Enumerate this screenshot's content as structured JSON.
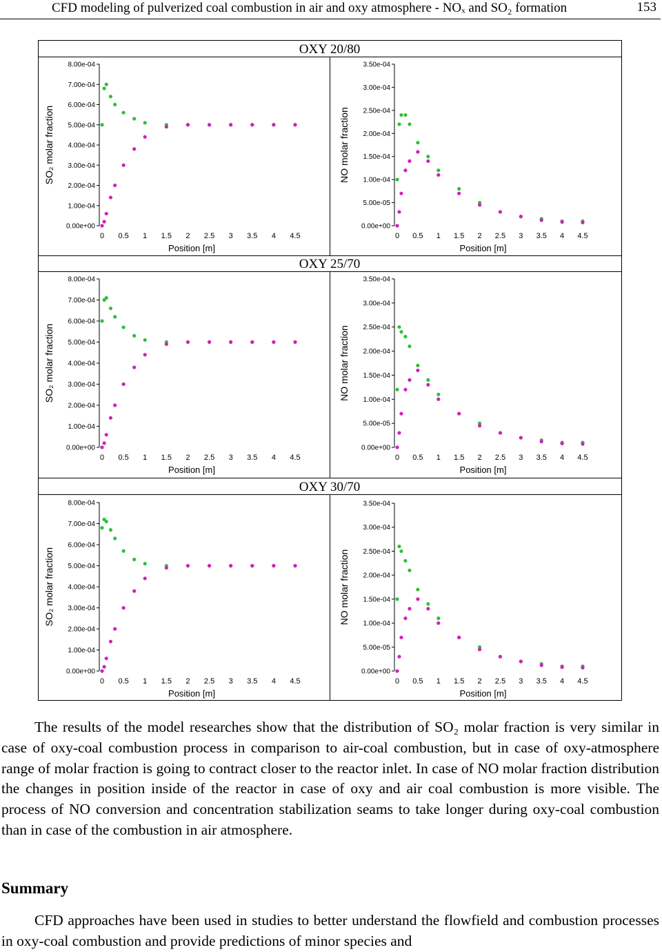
{
  "header": {
    "title": "CFD modeling of pulverized coal combustion in air and oxy atmosphere - NOₓ and SO₂ formation",
    "page_number": "153"
  },
  "figure": {
    "panels": [
      {
        "title": "OXY 20/80"
      },
      {
        "title": "OXY 25/70"
      },
      {
        "title": "OXY 30/70"
      }
    ]
  },
  "chart_data": [
    {
      "type": "scatter",
      "xlabel": "Position [m]",
      "ylabel": "SO₂ molar fraction",
      "x": [
        0,
        0.05,
        0.1,
        0.2,
        0.3,
        0.5,
        0.75,
        1,
        1.5,
        2,
        2.5,
        3,
        3.5,
        4,
        4.5
      ],
      "xlim": [
        0,
        4.5
      ],
      "xticks": [
        0,
        0.5,
        1,
        1.5,
        2,
        2.5,
        3,
        3.5,
        4,
        4.5
      ],
      "ylim": [
        0,
        0.0008
      ],
      "yticks": [
        {
          "value": 0,
          "label": "0.00e+00"
        },
        {
          "value": 0.0001,
          "label": "1.00e-04"
        },
        {
          "value": 0.0002,
          "label": "2.00e-04"
        },
        {
          "value": 0.0003,
          "label": "3.00e-04"
        },
        {
          "value": 0.0004,
          "label": "4.00e-04"
        },
        {
          "value": 0.0005,
          "label": "5.00e-04"
        },
        {
          "value": 0.0006,
          "label": "6.00e-04"
        },
        {
          "value": 0.0007,
          "label": "7.00e-04"
        },
        {
          "value": 0.0008,
          "label": "8.00e-04"
        }
      ],
      "series": [
        {
          "color": "#2fbf3a",
          "values": [
            0.0005,
            0.00068,
            0.0007,
            0.00064,
            0.0006,
            0.00056,
            0.00053,
            0.00051,
            0.0005,
            0.0005,
            0.0005,
            0.0005,
            0.0005,
            0.0005,
            0.0005
          ]
        },
        {
          "color": "#d21fbf",
          "values": [
            0,
            2e-05,
            6e-05,
            0.00014,
            0.0002,
            0.0003,
            0.00038,
            0.00044,
            0.00049,
            0.0005,
            0.0005,
            0.0005,
            0.0005,
            0.0005,
            0.0005
          ]
        }
      ]
    },
    {
      "type": "scatter",
      "xlabel": "Position [m]",
      "ylabel": "NO molar fraction",
      "x": [
        0,
        0.05,
        0.1,
        0.2,
        0.3,
        0.5,
        0.75,
        1,
        1.5,
        2,
        2.5,
        3,
        3.5,
        4,
        4.5
      ],
      "xlim": [
        0,
        4.5
      ],
      "xticks": [
        0,
        0.5,
        1,
        1.5,
        2,
        2.5,
        3,
        3.5,
        4,
        4.5
      ],
      "ylim": [
        0,
        0.00035
      ],
      "yticks": [
        {
          "value": 0,
          "label": "0.00e+00"
        },
        {
          "value": 5e-05,
          "label": "5.00e-05"
        },
        {
          "value": 0.0001,
          "label": "1.00e-04"
        },
        {
          "value": 0.00015,
          "label": "1.50e-04"
        },
        {
          "value": 0.0002,
          "label": "2.00e-04"
        },
        {
          "value": 0.00025,
          "label": "2.50e-04"
        },
        {
          "value": 0.0003,
          "label": "3.00e-04"
        },
        {
          "value": 0.00035,
          "label": "3.50e-04"
        }
      ],
      "series": [
        {
          "color": "#2fbf3a",
          "values": [
            0.0001,
            0.00022,
            0.00024,
            0.00024,
            0.00022,
            0.00018,
            0.00015,
            0.00012,
            8e-05,
            5e-05,
            3e-05,
            2e-05,
            1.5e-05,
            1e-05,
            1e-05
          ]
        },
        {
          "color": "#d21fbf",
          "values": [
            0,
            3e-05,
            7e-05,
            0.00012,
            0.00014,
            0.00016,
            0.00014,
            0.00011,
            7e-05,
            4.5e-05,
            3e-05,
            2e-05,
            1.2e-05,
            8e-06,
            7e-06
          ]
        }
      ]
    },
    {
      "type": "scatter",
      "xlabel": "Position [m]",
      "ylabel": "SO₂ molar fraction",
      "x": [
        0,
        0.05,
        0.1,
        0.2,
        0.3,
        0.5,
        0.75,
        1,
        1.5,
        2,
        2.5,
        3,
        3.5,
        4,
        4.5
      ],
      "xlim": [
        0,
        4.5
      ],
      "xticks": [
        0,
        0.5,
        1,
        1.5,
        2,
        2.5,
        3,
        3.5,
        4,
        4.5
      ],
      "ylim": [
        0,
        0.0008
      ],
      "yticks": [
        {
          "value": 0,
          "label": "0.00e+00"
        },
        {
          "value": 0.0001,
          "label": "1.00e-04"
        },
        {
          "value": 0.0002,
          "label": "2.00e-04"
        },
        {
          "value": 0.0003,
          "label": "3.00e-04"
        },
        {
          "value": 0.0004,
          "label": "4.00e-04"
        },
        {
          "value": 0.0005,
          "label": "5.00e-04"
        },
        {
          "value": 0.0006,
          "label": "6.00e-04"
        },
        {
          "value": 0.0007,
          "label": "7.00e-04"
        },
        {
          "value": 0.0008,
          "label": "8.00e-04"
        }
      ],
      "series": [
        {
          "color": "#2fbf3a",
          "values": [
            0.0006,
            0.0007,
            0.00071,
            0.00066,
            0.00062,
            0.00057,
            0.00053,
            0.00051,
            0.0005,
            0.0005,
            0.0005,
            0.0005,
            0.0005,
            0.0005,
            0.0005
          ]
        },
        {
          "color": "#d21fbf",
          "values": [
            0,
            2e-05,
            6e-05,
            0.00014,
            0.0002,
            0.0003,
            0.00038,
            0.00044,
            0.00049,
            0.0005,
            0.0005,
            0.0005,
            0.0005,
            0.0005,
            0.0005
          ]
        }
      ]
    },
    {
      "type": "scatter",
      "xlabel": "Position [m]",
      "ylabel": "NO molar fraction",
      "x": [
        0,
        0.05,
        0.1,
        0.2,
        0.3,
        0.5,
        0.75,
        1,
        1.5,
        2,
        2.5,
        3,
        3.5,
        4,
        4.5
      ],
      "xlim": [
        0,
        4.5
      ],
      "xticks": [
        0,
        0.5,
        1,
        1.5,
        2,
        2.5,
        3,
        3.5,
        4,
        4.5
      ],
      "ylim": [
        0,
        0.00035
      ],
      "yticks": [
        {
          "value": 0,
          "label": "0.00e+00"
        },
        {
          "value": 5e-05,
          "label": "5.00e-05"
        },
        {
          "value": 0.0001,
          "label": "1.00e-04"
        },
        {
          "value": 0.00015,
          "label": "1.50e-04"
        },
        {
          "value": 0.0002,
          "label": "2.00e-04"
        },
        {
          "value": 0.00025,
          "label": "2.50e-04"
        },
        {
          "value": 0.0003,
          "label": "3.00e-04"
        },
        {
          "value": 0.00035,
          "label": "3.50e-04"
        }
      ],
      "series": [
        {
          "color": "#2fbf3a",
          "values": [
            0.00012,
            0.00025,
            0.00024,
            0.00023,
            0.00021,
            0.00017,
            0.00014,
            0.00011,
            7e-05,
            5e-05,
            3e-05,
            2e-05,
            1.5e-05,
            1e-05,
            1e-05
          ]
        },
        {
          "color": "#d21fbf",
          "values": [
            0,
            3e-05,
            7e-05,
            0.00012,
            0.00014,
            0.00016,
            0.00013,
            0.0001,
            7e-05,
            4.5e-05,
            3e-05,
            2e-05,
            1.2e-05,
            8e-06,
            7e-06
          ]
        }
      ]
    },
    {
      "type": "scatter",
      "xlabel": "Position [m]",
      "ylabel": "SO₂ molar fraction",
      "x": [
        0,
        0.05,
        0.1,
        0.2,
        0.3,
        0.5,
        0.75,
        1,
        1.5,
        2,
        2.5,
        3,
        3.5,
        4,
        4.5
      ],
      "xlim": [
        0,
        4.5
      ],
      "xticks": [
        0,
        0.5,
        1,
        1.5,
        2,
        2.5,
        3,
        3.5,
        4,
        4.5
      ],
      "ylim": [
        0,
        0.0008
      ],
      "yticks": [
        {
          "value": 0,
          "label": "0.00e+00"
        },
        {
          "value": 0.0001,
          "label": "1.00e-04"
        },
        {
          "value": 0.0002,
          "label": "2.00e-04"
        },
        {
          "value": 0.0003,
          "label": "3.00e-04"
        },
        {
          "value": 0.0004,
          "label": "4.00e-04"
        },
        {
          "value": 0.0005,
          "label": "5.00e-04"
        },
        {
          "value": 0.0006,
          "label": "6.00e-04"
        },
        {
          "value": 0.0007,
          "label": "7.00e-04"
        },
        {
          "value": 0.0008,
          "label": "8.00e-04"
        }
      ],
      "series": [
        {
          "color": "#2fbf3a",
          "values": [
            0.00068,
            0.00072,
            0.00071,
            0.00067,
            0.00063,
            0.00057,
            0.00053,
            0.00051,
            0.0005,
            0.0005,
            0.0005,
            0.0005,
            0.0005,
            0.0005,
            0.0005
          ]
        },
        {
          "color": "#d21fbf",
          "values": [
            0,
            2e-05,
            6e-05,
            0.00014,
            0.0002,
            0.0003,
            0.00038,
            0.00044,
            0.00049,
            0.0005,
            0.0005,
            0.0005,
            0.0005,
            0.0005,
            0.0005
          ]
        }
      ]
    },
    {
      "type": "scatter",
      "xlabel": "Position [m]",
      "ylabel": "NO molar fraction",
      "x": [
        0,
        0.05,
        0.1,
        0.2,
        0.3,
        0.5,
        0.75,
        1,
        1.5,
        2,
        2.5,
        3,
        3.5,
        4,
        4.5
      ],
      "xlim": [
        0,
        4.5
      ],
      "xticks": [
        0,
        0.5,
        1,
        1.5,
        2,
        2.5,
        3,
        3.5,
        4,
        4.5
      ],
      "ylim": [
        0,
        0.00035
      ],
      "yticks": [
        {
          "value": 0,
          "label": "0.00e+00"
        },
        {
          "value": 5e-05,
          "label": "5.00e-05"
        },
        {
          "value": 0.0001,
          "label": "1.00e-04"
        },
        {
          "value": 0.00015,
          "label": "1.50e-04"
        },
        {
          "value": 0.0002,
          "label": "2.00e-04"
        },
        {
          "value": 0.00025,
          "label": "2.50e-04"
        },
        {
          "value": 0.0003,
          "label": "3.00e-04"
        },
        {
          "value": 0.00035,
          "label": "3.50e-04"
        }
      ],
      "series": [
        {
          "color": "#2fbf3a",
          "values": [
            0.00015,
            0.00026,
            0.00025,
            0.00023,
            0.00021,
            0.00017,
            0.00014,
            0.00011,
            7e-05,
            5e-05,
            3e-05,
            2e-05,
            1.5e-05,
            1e-05,
            1e-05
          ]
        },
        {
          "color": "#d21fbf",
          "values": [
            0,
            3e-05,
            7e-05,
            0.00011,
            0.00013,
            0.00015,
            0.00013,
            0.0001,
            7e-05,
            4.5e-05,
            3e-05,
            2e-05,
            1.2e-05,
            8e-06,
            7e-06
          ]
        }
      ]
    }
  ],
  "body": {
    "paragraph_1": "The results of the model researches show that the distribution of SO₂ molar fraction is very similar in case of oxy-coal combustion process in comparison to air-coal combustion, but in case of oxy-atmosphere range of molar fraction is going to contract closer to the reactor inlet. In case of NO molar fraction distribution the changes in position inside of the reactor in case of oxy and air coal combustion is more visible. The process of NO conversion and concentration stabilization seams to take longer during oxy-coal combustion than in case of the combustion in air atmosphere.",
    "heading": "Summary",
    "paragraph_2": "CFD approaches have been used in studies to better understand the flowfield and combustion processes in oxy-coal combustion and provide predictions of minor species and"
  }
}
